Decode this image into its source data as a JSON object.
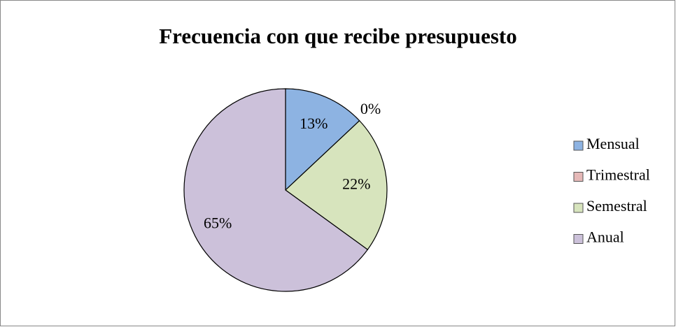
{
  "chart_data": {
    "type": "pie",
    "title": "Frecuencia con que recibe presupuesto",
    "categories": [
      "Mensual",
      "Trimestral",
      "Semestral",
      "Anual"
    ],
    "values": [
      13,
      0,
      22,
      65
    ],
    "value_labels": [
      "13%",
      "0%",
      "22%",
      "65%"
    ],
    "colors": [
      "#8db3e2",
      "#e6b9b8",
      "#d7e4bd",
      "#ccc1da"
    ],
    "legend": "right"
  }
}
